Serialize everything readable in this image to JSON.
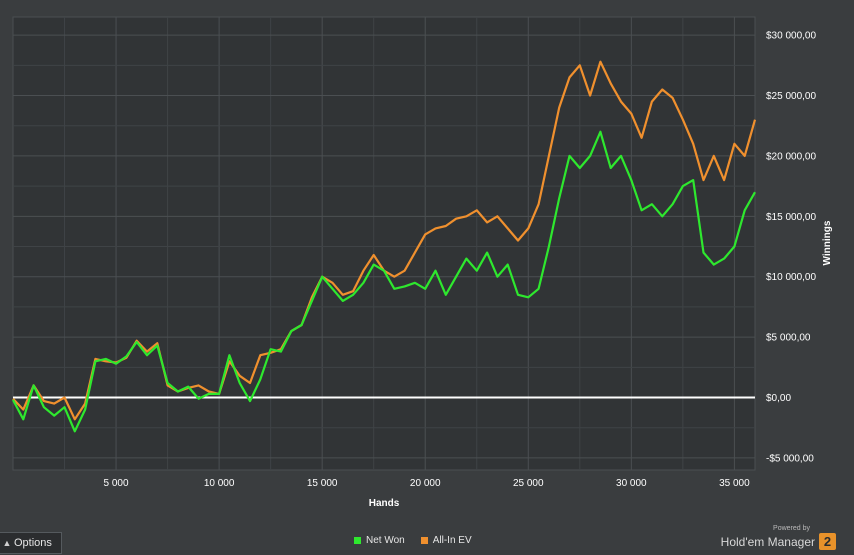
{
  "chart_data": {
    "type": "line",
    "xlabel": "Hands",
    "ylabel": "Winnings",
    "xlim": [
      0,
      36000
    ],
    "ylim": [
      -6000,
      31500
    ],
    "x_ticks": [
      5000,
      10000,
      15000,
      20000,
      25000,
      30000,
      35000
    ],
    "x_tick_labels": [
      "5 000",
      "10 000",
      "15 000",
      "20 000",
      "25 000",
      "30 000",
      "35 000"
    ],
    "y_ticks": [
      -5000,
      0,
      5000,
      10000,
      15000,
      20000,
      25000,
      30000
    ],
    "y_tick_labels": [
      "-$5 000,00",
      "$0,00",
      "$5 000,00",
      "$10 000,00",
      "$15 000,00",
      "$20 000,00",
      "$25 000,00",
      "$30 000,00"
    ],
    "grid": true,
    "legend_position": "bottom-center",
    "series": [
      {
        "name": "Net Won",
        "color": "#2ee82e",
        "x": [
          0,
          500,
          1000,
          1500,
          2000,
          2500,
          3000,
          3500,
          4000,
          4500,
          5000,
          5500,
          6000,
          6500,
          7000,
          7500,
          8000,
          8500,
          9000,
          9500,
          10000,
          10500,
          11000,
          11500,
          12000,
          12500,
          13000,
          13500,
          14000,
          14500,
          15000,
          15500,
          16000,
          16500,
          17000,
          17500,
          18000,
          18500,
          19000,
          19500,
          20000,
          20500,
          21000,
          21500,
          22000,
          22500,
          23000,
          23500,
          24000,
          24500,
          25000,
          25500,
          26000,
          26500,
          27000,
          27500,
          28000,
          28500,
          29000,
          29500,
          30000,
          30500,
          31000,
          31500,
          32000,
          32500,
          33000,
          33500,
          34000,
          34500,
          35000,
          35500,
          36000
        ],
        "values": [
          -200,
          -1800,
          1000,
          -800,
          -1500,
          -800,
          -2800,
          -1000,
          3000,
          3200,
          2800,
          3400,
          4600,
          3500,
          4300,
          1200,
          500,
          900,
          -100,
          300,
          300,
          3500,
          1200,
          -300,
          1500,
          4000,
          3800,
          5500,
          6000,
          8000,
          10000,
          9000,
          8000,
          8500,
          9500,
          11000,
          10500,
          9000,
          9200,
          9500,
          9000,
          10500,
          8500,
          10000,
          11500,
          10500,
          12000,
          10000,
          11000,
          8500,
          8300,
          9000,
          12500,
          16500,
          20000,
          19000,
          20000,
          22000,
          19000,
          20000,
          18000,
          15500,
          16000,
          15000,
          16000,
          17500,
          18000,
          12000,
          11000,
          11500,
          12500,
          15500,
          17000
        ]
      },
      {
        "name": "All-In EV",
        "color": "#f0902e",
        "x": [
          0,
          500,
          1000,
          1500,
          2000,
          2500,
          3000,
          3500,
          4000,
          4500,
          5000,
          5500,
          6000,
          6500,
          7000,
          7500,
          8000,
          8500,
          9000,
          9500,
          10000,
          10500,
          11000,
          11500,
          12000,
          12500,
          13000,
          13500,
          14000,
          14500,
          15000,
          15500,
          16000,
          16500,
          17000,
          17500,
          18000,
          18500,
          19000,
          19500,
          20000,
          20500,
          21000,
          21500,
          22000,
          22500,
          23000,
          23500,
          24000,
          24500,
          25000,
          25500,
          26000,
          26500,
          27000,
          27500,
          28000,
          28500,
          29000,
          29500,
          30000,
          30500,
          31000,
          31500,
          32000,
          32500,
          33000,
          33500,
          34000,
          34500,
          35000,
          35500,
          36000
        ],
        "values": [
          -100,
          -1000,
          1000,
          -300,
          -500,
          0,
          -1800,
          -500,
          3200,
          3000,
          2900,
          3300,
          4700,
          3800,
          4500,
          1000,
          500,
          800,
          1000,
          500,
          300,
          3000,
          1800,
          1200,
          3500,
          3700,
          4000,
          5500,
          6000,
          8300,
          10000,
          9500,
          8500,
          8800,
          10500,
          11800,
          10500,
          10000,
          10500,
          12000,
          13500,
          14000,
          14200,
          14800,
          15000,
          15500,
          14500,
          15000,
          14000,
          13000,
          14000,
          16000,
          20000,
          24000,
          26500,
          27500,
          25000,
          27800,
          26000,
          24500,
          23500,
          21500,
          24500,
          25500,
          24800,
          23000,
          21000,
          18000,
          20000,
          18000,
          21000,
          20000,
          23000
        ]
      }
    ]
  },
  "ui": {
    "options_label": "Options",
    "legend": [
      {
        "label": "Net Won",
        "color": "#2ee82e"
      },
      {
        "label": "All-In EV",
        "color": "#f0902e"
      }
    ],
    "brand_powered": "Powered by",
    "brand_name": "Hold'em Manager",
    "brand_badge": "2"
  }
}
